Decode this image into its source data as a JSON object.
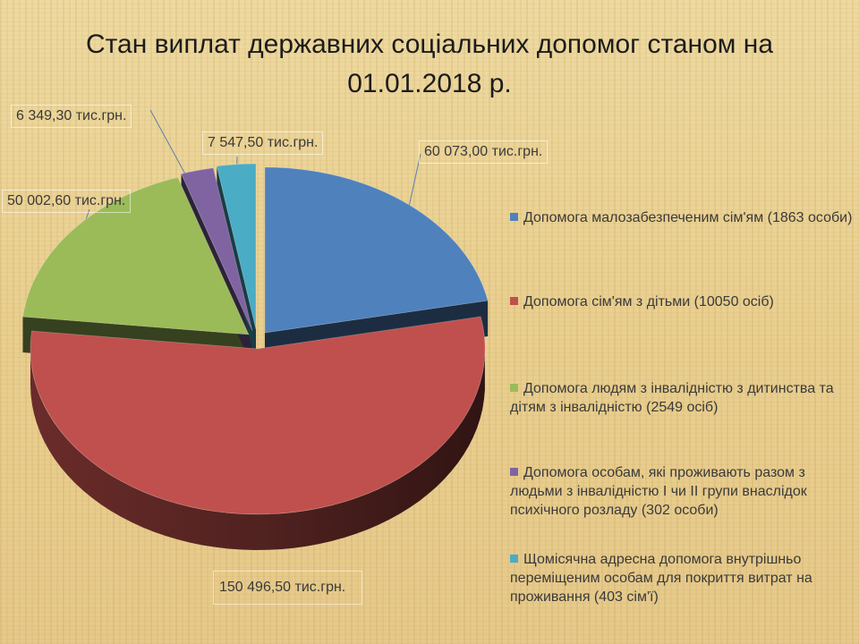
{
  "title_line1": "Стан виплат державних соціальних допомог станом на",
  "title_line2": "01.01.2018 р.",
  "chart_data": {
    "type": "pie",
    "title": "Стан виплат державних соціальних допомог станом на 01.01.2018 р.",
    "unit": "тис.грн.",
    "legend_position": "right",
    "slices": [
      {
        "name": "Допомога малозабезпеченим сім'ям (1863 особи)",
        "value": 60073.0,
        "label": "60 073,00  тис.грн.",
        "color": "#4f81bd"
      },
      {
        "name": "Допомога сім'ям з дітьми (10050 осіб)",
        "value": 150496.5,
        "label": "150 496,50  тис.грн.",
        "color": "#c0504d"
      },
      {
        "name": "Допомога людям з інвалідністю з дитинства та дітям  з інвалідністю (2549 осіб)",
        "value": 50002.6,
        "label": "50 002,60  тис.грн.",
        "color": "#9bbb59"
      },
      {
        "name": "Допомога особам, які проживають разом з людьми з інвалідністю І чи ІІ групи внаслідок психічного розладу (302 особи)",
        "value": 6349.3,
        "label": "6 349,30  тис.грн.",
        "color": "#8064a2"
      },
      {
        "name": "Щомісячна адресна допомога внутрішньо переміщеним особам для покриття витрат на проживання (403 сім'ї)",
        "value": 7547.5,
        "label": "7 547,50 тис.грн.",
        "color": "#4bacc6"
      }
    ]
  }
}
